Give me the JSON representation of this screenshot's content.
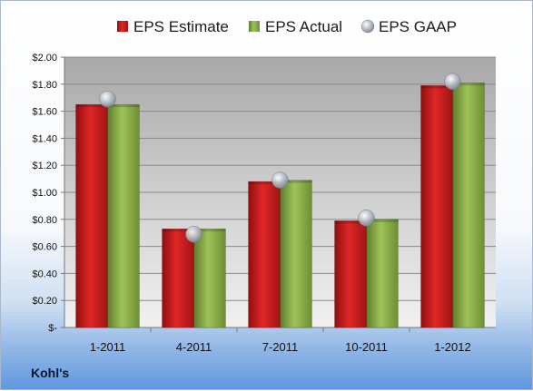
{
  "company_label": "Kohl's",
  "chart_data": {
    "type": "bar",
    "categories": [
      "1-2011",
      "4-2011",
      "7-2011",
      "10-2011",
      "1-2012"
    ],
    "series": [
      {
        "name": "EPS Estimate",
        "kind": "bar",
        "color": "#cc1f1f",
        "values": [
          1.65,
          0.73,
          1.08,
          0.79,
          1.79
        ]
      },
      {
        "name": "EPS Actual",
        "kind": "bar",
        "color": "#8bb04b",
        "values": [
          1.65,
          0.73,
          1.09,
          0.8,
          1.81
        ]
      },
      {
        "name": "EPS GAAP",
        "kind": "marker",
        "color": "#b9c2cc",
        "values": [
          1.69,
          0.69,
          1.09,
          0.81,
          1.82
        ]
      }
    ],
    "ylim": [
      0,
      2.0
    ],
    "yticks": [
      0,
      0.2,
      0.4,
      0.6,
      0.8,
      1.0,
      1.2,
      1.4,
      1.6,
      1.8,
      2.0
    ],
    "ytick_labels": [
      "$-",
      "$0.20",
      "$0.40",
      "$0.60",
      "$0.80",
      "$1.00",
      "$1.20",
      "$1.40",
      "$1.60",
      "$1.80",
      "$2.00"
    ],
    "grid": true,
    "legend_position": "top"
  }
}
